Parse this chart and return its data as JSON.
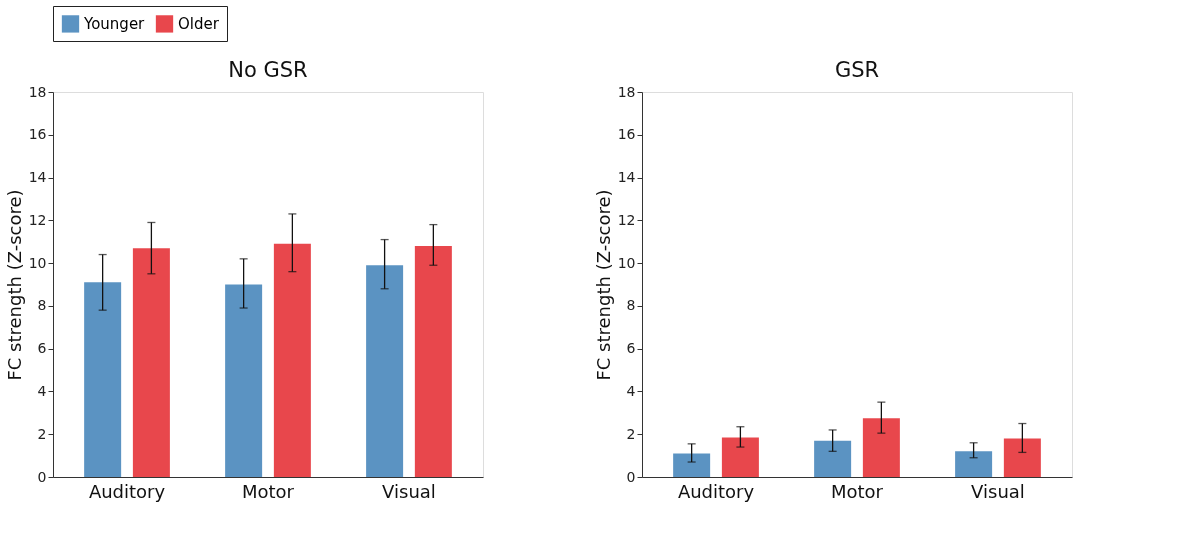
{
  "chart_data": [
    {
      "type": "bar",
      "title": "No GSR",
      "ylabel": "FC strength (Z-score)",
      "categories": [
        "Auditory",
        "Motor",
        "Visual"
      ],
      "ylim": [
        0,
        18
      ],
      "yticks": [
        0,
        2,
        4,
        6,
        8,
        10,
        12,
        14,
        16,
        18
      ],
      "grid": false,
      "legend": "top",
      "series": [
        {
          "name": "Younger",
          "color": "#5b93c2",
          "values": [
            9.1,
            9.0,
            9.9
          ],
          "errors": [
            [
              7.8,
              10.4
            ],
            [
              7.9,
              10.2
            ],
            [
              8.8,
              11.1
            ]
          ]
        },
        {
          "name": "Older",
          "color": "#e8474c",
          "values": [
            10.7,
            10.9,
            10.8
          ],
          "errors": [
            [
              9.5,
              11.9
            ],
            [
              9.6,
              12.3
            ],
            [
              9.9,
              11.8
            ]
          ]
        }
      ]
    },
    {
      "type": "bar",
      "title": "GSR",
      "ylabel": "FC strength (Z-score)",
      "categories": [
        "Auditory",
        "Motor",
        "Visual"
      ],
      "ylim": [
        0,
        18
      ],
      "yticks": [
        0,
        2,
        4,
        6,
        8,
        10,
        12,
        14,
        16,
        18
      ],
      "grid": false,
      "legend": "top",
      "series": [
        {
          "name": "Younger",
          "color": "#5b93c2",
          "values": [
            1.1,
            1.7,
            1.2
          ],
          "errors": [
            [
              0.7,
              1.55
            ],
            [
              1.2,
              2.2
            ],
            [
              0.9,
              1.6
            ]
          ]
        },
        {
          "name": "Older",
          "color": "#e8474c",
          "values": [
            1.85,
            2.75,
            1.8
          ],
          "errors": [
            [
              1.4,
              2.35
            ],
            [
              2.05,
              3.5
            ],
            [
              1.15,
              2.5
            ]
          ]
        }
      ]
    }
  ]
}
